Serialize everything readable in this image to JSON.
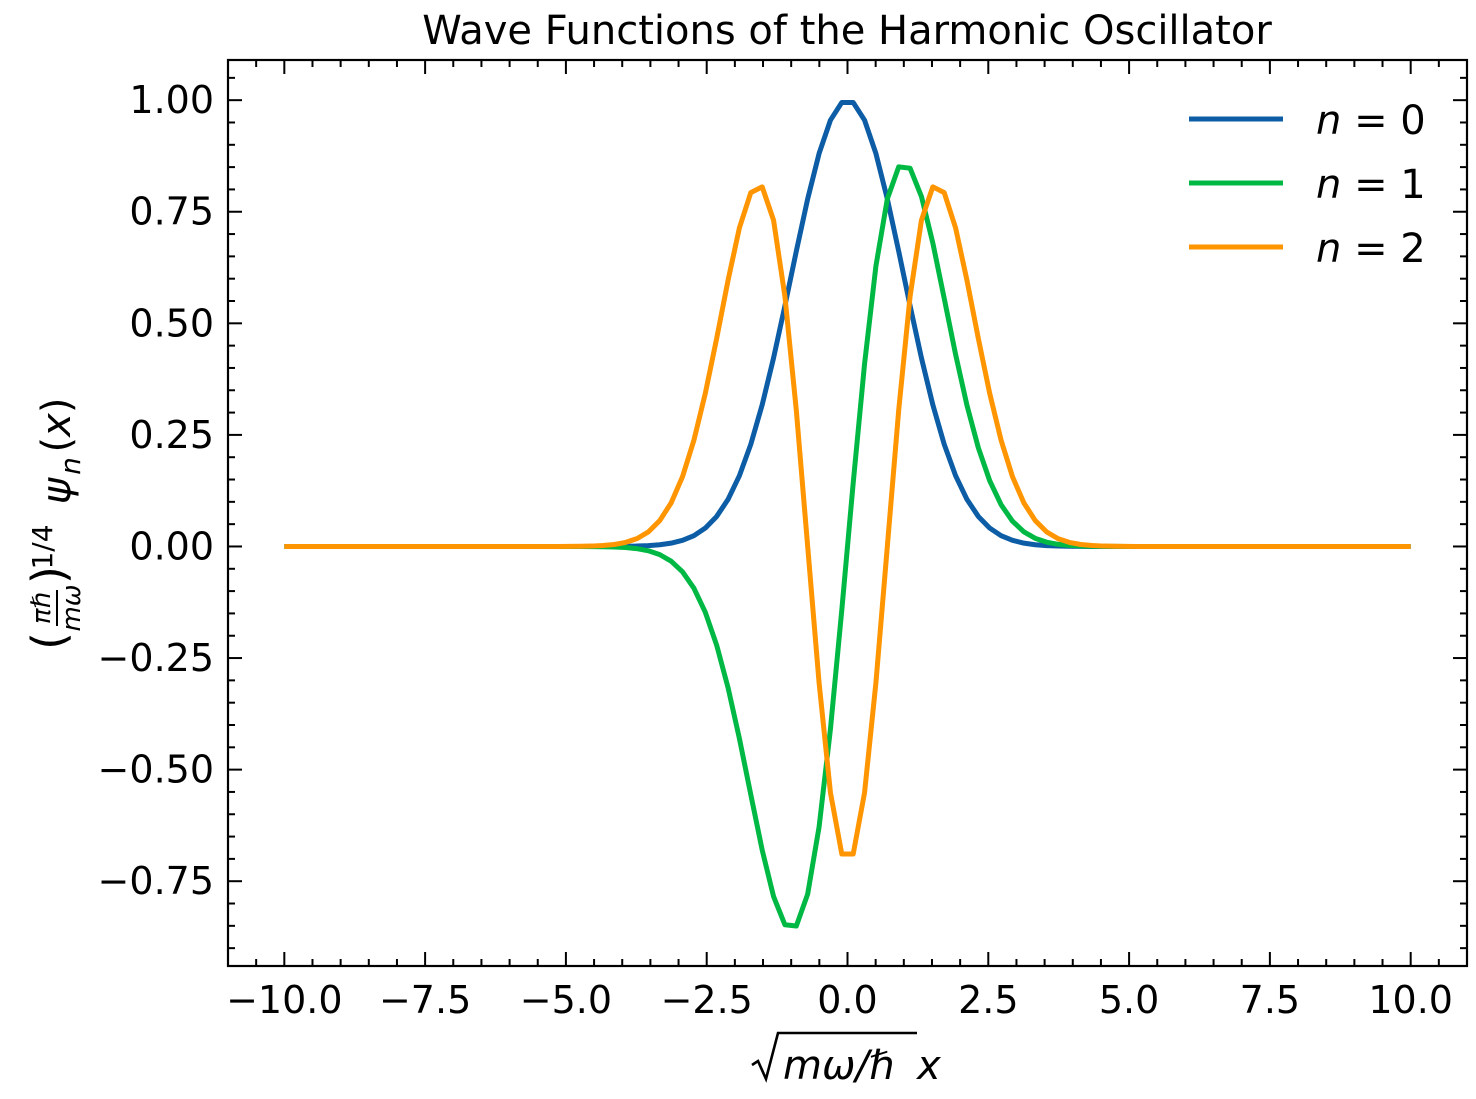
{
  "chart_data": {
    "type": "line",
    "title": "Wave Functions of the Harmonic Oscillator",
    "xlabel": "√mω/ℏ x",
    "ylabel": "(πℏ/mω)^1/4 ψn(x)",
    "xlim": [
      -11.0,
      11.0
    ],
    "ylim": [
      -0.94,
      1.09
    ],
    "x_ticks": [
      -10.0,
      -7.5,
      -5.0,
      -2.5,
      0.0,
      2.5,
      5.0,
      7.5,
      10.0
    ],
    "x_tick_labels": [
      "−10.0",
      "−7.5",
      "−5.0",
      "−2.5",
      "0.0",
      "2.5",
      "5.0",
      "7.5",
      "10.0"
    ],
    "y_ticks": [
      1.0,
      0.75,
      0.5,
      0.25,
      0.0,
      -0.25,
      -0.5,
      -0.75
    ],
    "y_tick_labels": [
      "1.00",
      "0.75",
      "0.50",
      "0.25",
      "0.00",
      "−0.25",
      "−0.50",
      "−0.75"
    ],
    "grid": false,
    "legend_position": "top-right",
    "x_range": [
      -10,
      10
    ],
    "n_points": 100,
    "series": [
      {
        "name": "n = 0",
        "legend_base": "n",
        "legend_value": "0",
        "n": 0,
        "color": "#0C5DA5"
      },
      {
        "name": "n = 1",
        "legend_base": "n",
        "legend_value": "1",
        "n": 1,
        "color": "#00B945"
      },
      {
        "name": "n = 2",
        "legend_base": "n",
        "legend_value": "2",
        "n": 2,
        "color": "#FF9500"
      }
    ]
  }
}
